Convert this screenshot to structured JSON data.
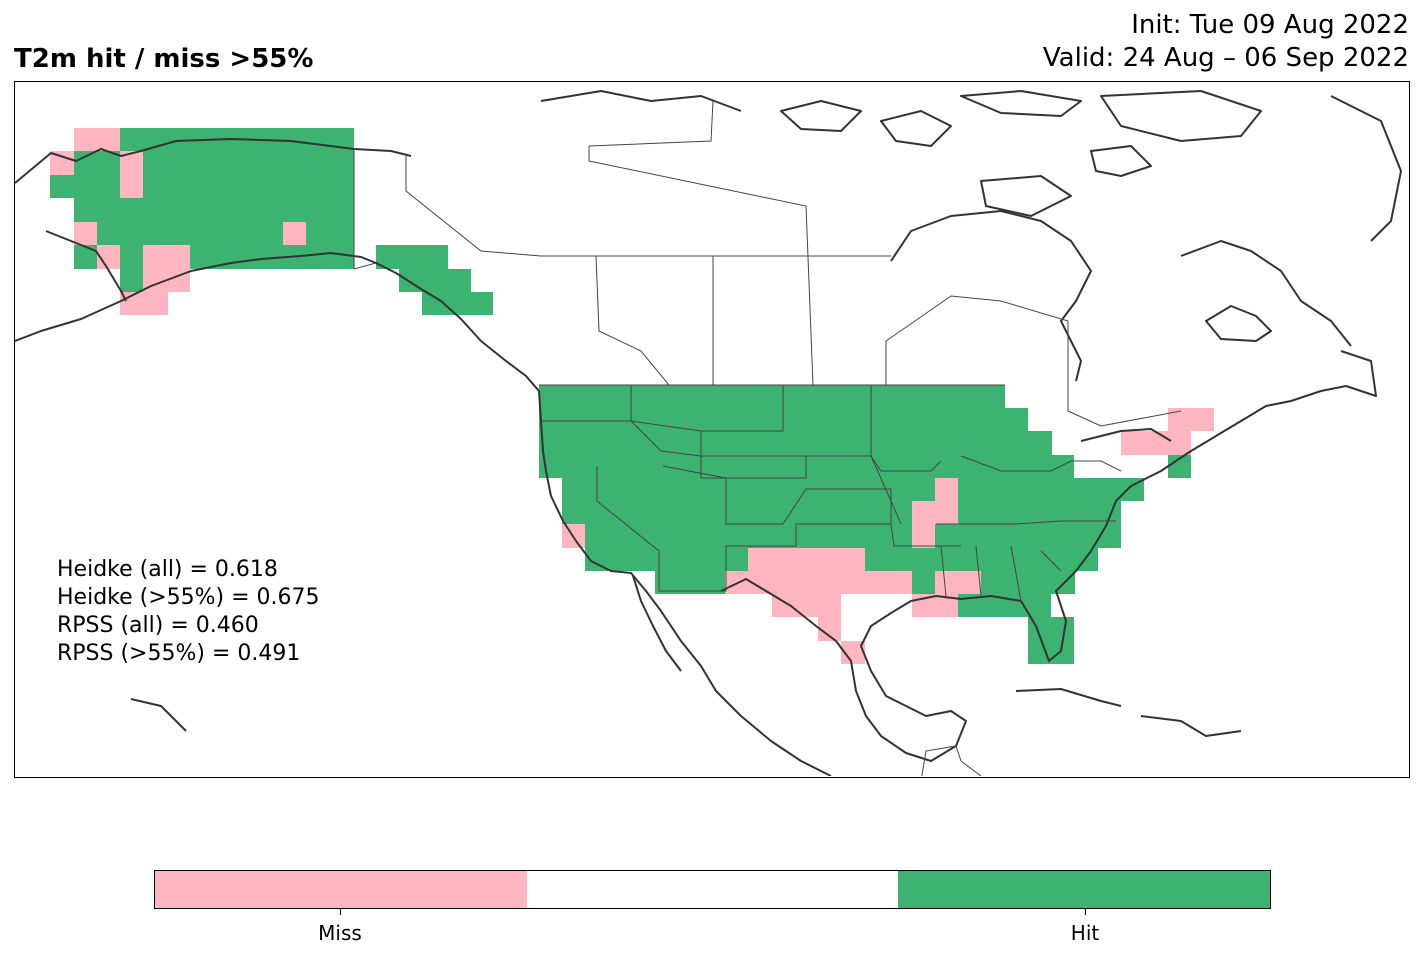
{
  "title": "T2m hit / miss  >55%",
  "init": "Init: Tue 09 Aug 2022",
  "valid": "Valid: 24 Aug – 06 Sep 2022",
  "stats": [
    "Heidke (all) = 0.618",
    "Heidke (>55%) = 0.675",
    "RPSS (all) = 0.460",
    "RPSS (>55%) = 0.491"
  ],
  "colors": {
    "miss": "#ffb6c1",
    "neutral": "#ffffff",
    "hit": "#3cb371",
    "coast": "#333333",
    "border": "#444444"
  },
  "colorbar": {
    "segments": [
      "miss",
      "neutral",
      "hit"
    ],
    "labels": [
      {
        "text": "Miss",
        "category": "miss"
      },
      {
        "text": "Hit",
        "category": "hit"
      }
    ]
  }
}
